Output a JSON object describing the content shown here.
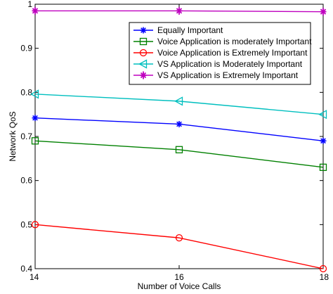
{
  "chart_data": {
    "type": "line",
    "xlabel": "Number of Voice Calls",
    "ylabel": "Network QoS",
    "xlim": [
      14,
      18
    ],
    "ylim": [
      0.4,
      1.0
    ],
    "x_ticks": [
      "14",
      "16",
      "18"
    ],
    "y_ticks": [
      "0.4",
      "0.5",
      "0.6",
      "0.7",
      "0.8",
      "0.9",
      "1"
    ],
    "x": [
      14,
      16,
      18
    ],
    "grid": false,
    "legend_position": "top-right",
    "series": [
      {
        "name": "Equally Important",
        "values": [
          0.742,
          0.728,
          0.69
        ],
        "color": "#0000ff",
        "marker": "asterisk"
      },
      {
        "name": "Voice Application is moderately Important",
        "values": [
          0.69,
          0.67,
          0.63
        ],
        "color": "#008000",
        "marker": "square"
      },
      {
        "name": "Voice Application is Extremely Important",
        "values": [
          0.5,
          0.47,
          0.4
        ],
        "color": "#ff0000",
        "marker": "circle"
      },
      {
        "name": "VS Application is Moderately Important",
        "values": [
          0.796,
          0.78,
          0.75
        ],
        "color": "#00bfbf",
        "marker": "triangle-left"
      },
      {
        "name": "VS Application is Extremely Important",
        "values": [
          0.985,
          0.985,
          0.983
        ],
        "color": "#bf00bf",
        "marker": "star"
      }
    ]
  }
}
